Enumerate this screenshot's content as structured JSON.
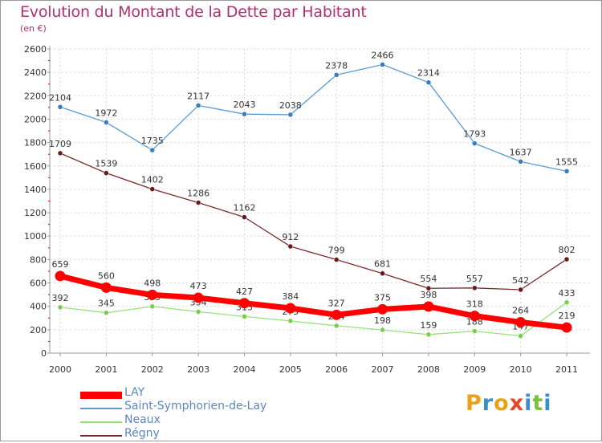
{
  "header": {
    "title": "Evolution du Montant de la Dette par Habitant",
    "subtitle": "(en €)"
  },
  "brand": {
    "text": "Proxiti",
    "colors": [
      "#e8a21b",
      "#3c8dc8",
      "#e8a21b",
      "#e04a2a",
      "#3c8dc8",
      "#7cbf3f",
      "#3c8dc8"
    ]
  },
  "chart_data": {
    "type": "line",
    "title": "Evolution du Montant de la Dette par Habitant",
    "ylabel": "(en €)",
    "xlabel": "",
    "ylim": [
      0,
      2600
    ],
    "yticks": [
      0,
      200,
      400,
      600,
      800,
      1000,
      1200,
      1400,
      1600,
      1800,
      2000,
      2200,
      2400,
      2600
    ],
    "categories": [
      "2000",
      "2001",
      "2002",
      "2003",
      "2004",
      "2005",
      "2006",
      "2007",
      "2008",
      "2009",
      "2010",
      "2011"
    ],
    "grid": true,
    "legend_position": "bottom-left",
    "series": [
      {
        "name": "Saint-Symphorien-de-Lay",
        "color": "#5b9bd5",
        "marker": "#3a7cc0",
        "values": [
          2104,
          1972,
          1735,
          2117,
          2043,
          2038,
          2378,
          2466,
          2314,
          1793,
          1637,
          1555
        ]
      },
      {
        "name": "Régny",
        "color": "#7a2a2a",
        "marker": "#6a1a1a",
        "values": [
          1709,
          1539,
          1402,
          1286,
          1162,
          912,
          799,
          681,
          554,
          557,
          542,
          802
        ]
      },
      {
        "name": "Neaux",
        "color": "#99e07a",
        "marker": "#7ccc4e",
        "values": [
          392,
          345,
          399,
          354,
          313,
          275,
          234,
          198,
          159,
          188,
          147,
          433
        ]
      },
      {
        "name": "LAY",
        "color": "#ff0000",
        "marker": "#ff0000",
        "values": [
          659,
          560,
          498,
          473,
          427,
          384,
          327,
          375,
          398,
          318,
          264,
          219
        ]
      }
    ]
  },
  "legend": {
    "items": [
      {
        "label": "LAY",
        "color": "#ff0000"
      },
      {
        "label": "Saint-Symphorien-de-Lay",
        "color": "#5b9bd5"
      },
      {
        "label": "Neaux",
        "color": "#99e07a"
      },
      {
        "label": "Régny",
        "color": "#7a2a2a"
      }
    ]
  }
}
